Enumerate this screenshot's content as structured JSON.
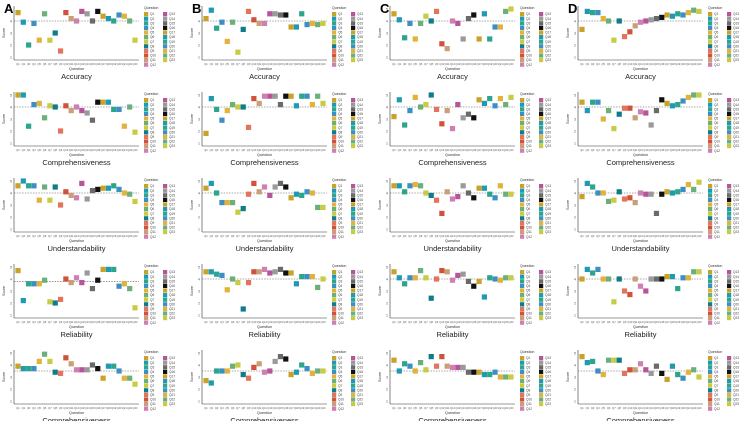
{
  "figure": {
    "columns": [
      "A",
      "B",
      "C",
      "D"
    ],
    "row_titles": [
      "Accuracy",
      "Comprehensiveness",
      "Understandability",
      "Reliability",
      "Comprehensiveness"
    ],
    "x_axis_label": "Question",
    "y_axis_label": "Score",
    "legend_title": "Question"
  },
  "colors": {
    "reference_line": "#555555",
    "axis": "#333333",
    "palette": [
      "#c9a227",
      "#1e9bb3",
      "#2ca58d",
      "#3c8fc4",
      "#e2b23b",
      "#6bb07a",
      "#c7cc44",
      "#0f7c8c",
      "#e3735b",
      "#d0523a",
      "#c89f78",
      "#cf7fb1",
      "#b7559a",
      "#9a9a9a",
      "#6a6a6a",
      "#111111"
    ]
  },
  "chart_data": [
    {
      "panel": "A",
      "metric": "Accuracy",
      "type": "scatter",
      "xlabel": "Question",
      "ylabel": "Score",
      "ref": 4.0,
      "ylim": [
        1,
        5
      ],
      "x": [
        "Q1",
        "Q2",
        "Q3",
        "Q4",
        "Q5",
        "Q6",
        "Q7",
        "Q8",
        "Q9",
        "Q10",
        "Q11",
        "Q12",
        "Q13",
        "Q14",
        "Q15",
        "Q16",
        "Q17",
        "Q18",
        "Q19",
        "Q20",
        "Q21",
        "Q22",
        "Q23"
      ],
      "values": [
        4.7,
        3.9,
        2.0,
        3.8,
        2.4,
        4.6,
        2.4,
        3.0,
        1.5,
        4.7,
        4.2,
        4.0,
        4.8,
        4.6,
        4.0,
        4.8,
        4.4,
        4.2,
        4.0,
        4.5,
        4.4,
        4.0,
        2.4
      ]
    },
    {
      "panel": "B",
      "metric": "Accuracy",
      "type": "scatter",
      "xlabel": "Question",
      "ylabel": "Score",
      "ref": 4.0,
      "ylim": [
        1,
        5
      ],
      "x": [
        "Q1",
        "Q2",
        "Q3",
        "Q4",
        "Q5",
        "Q6",
        "Q7",
        "Q8",
        "Q9",
        "Q10",
        "Q11",
        "Q12",
        "Q13",
        "Q14",
        "Q15",
        "Q16",
        "Q17",
        "Q18",
        "Q19",
        "Q20",
        "Q21",
        "Q22",
        "Q23"
      ],
      "values": [
        4.2,
        4.9,
        3.4,
        3.9,
        2.3,
        3.9,
        1.4,
        3.3,
        4.8,
        4.1,
        3.8,
        3.8,
        4.6,
        4.6,
        4.5,
        4.5,
        3.5,
        3.5,
        4.6,
        3.7,
        3.8,
        3.7,
        3.8
      ]
    },
    {
      "panel": "C",
      "metric": "Accuracy",
      "type": "scatter",
      "xlabel": "Question",
      "ylabel": "Score",
      "ref": 4.0,
      "ylim": [
        1,
        5
      ],
      "x": [
        "Q1",
        "Q2",
        "Q3",
        "Q4",
        "Q5",
        "Q6",
        "Q7",
        "Q8",
        "Q9",
        "Q10",
        "Q11",
        "Q12",
        "Q13",
        "Q14",
        "Q15",
        "Q16",
        "Q17",
        "Q18",
        "Q19",
        "Q20",
        "Q21",
        "Q22",
        "Q23"
      ],
      "values": [
        4.6,
        4.1,
        2.6,
        3.8,
        2.5,
        3.8,
        4.4,
        4.0,
        4.8,
        2.1,
        1.7,
        4.0,
        3.8,
        2.5,
        4.2,
        4.5,
        2.5,
        4.6,
        2.5,
        3.5,
        3.5,
        4.8,
        5.0
      ]
    },
    {
      "panel": "D",
      "metric": "Accuracy",
      "type": "scatter",
      "xlabel": "Question",
      "ylabel": "Score",
      "ref": 4.0,
      "ylim": [
        1,
        5
      ],
      "x": [
        "Q1",
        "Q2",
        "Q3",
        "Q4",
        "Q5",
        "Q6",
        "Q7",
        "Q8",
        "Q9",
        "Q10",
        "Q11",
        "Q12",
        "Q13",
        "Q14",
        "Q15",
        "Q16",
        "Q17",
        "Q18",
        "Q19",
        "Q20",
        "Q21",
        "Q22",
        "Q23"
      ],
      "values": [
        3.3,
        4.8,
        4.7,
        4.7,
        4.2,
        4.0,
        2.4,
        4.0,
        2.7,
        3.1,
        3.6,
        3.9,
        4.0,
        4.1,
        4.2,
        4.3,
        4.5,
        4.4,
        4.6,
        4.5,
        4.7,
        4.9,
        4.8
      ]
    },
    {
      "panel": "A",
      "metric": "Comprehensiveness",
      "type": "scatter",
      "xlabel": "Question",
      "ylabel": "Score",
      "ref": 4.0,
      "ylim": [
        1,
        5
      ],
      "x": [
        "Q1",
        "Q2",
        "Q3",
        "Q4",
        "Q5",
        "Q6",
        "Q7",
        "Q8",
        "Q9",
        "Q10",
        "Q11",
        "Q12",
        "Q13",
        "Q14",
        "Q15",
        "Q16",
        "Q17",
        "Q18",
        "Q19",
        "Q20",
        "Q21",
        "Q22",
        "Q23"
      ],
      "values": [
        5.0,
        5.0,
        2.4,
        4.2,
        4.3,
        3.1,
        4.1,
        4.0,
        2.0,
        4.1,
        3.7,
        4.0,
        3.7,
        3.5,
        2.9,
        4.4,
        4.4,
        4.4,
        3.8,
        3.8,
        2.4,
        4.0,
        1.9
      ]
    },
    {
      "panel": "B",
      "metric": "Comprehensiveness",
      "type": "scatter",
      "xlabel": "Question",
      "ylabel": "Score",
      "ref": 4.0,
      "ylim": [
        1,
        5
      ],
      "x": [
        "Q1",
        "Q2",
        "Q3",
        "Q4",
        "Q5",
        "Q6",
        "Q7",
        "Q8",
        "Q9",
        "Q10",
        "Q11",
        "Q12",
        "Q13",
        "Q14",
        "Q15",
        "Q16",
        "Q17",
        "Q18",
        "Q19",
        "Q20",
        "Q21",
        "Q22",
        "Q23"
      ],
      "values": [
        1.8,
        4.7,
        3.8,
        2.9,
        3.7,
        4.2,
        4.0,
        4.0,
        2.3,
        4.7,
        4.3,
        4.9,
        4.9,
        4.9,
        4.2,
        4.9,
        4.9,
        4.1,
        4.9,
        4.9,
        4.2,
        4.9,
        4.3
      ]
    },
    {
      "panel": "C",
      "metric": "Comprehensiveness",
      "type": "scatter",
      "xlabel": "Question",
      "ylabel": "Score",
      "ref": 4.0,
      "ylim": [
        1,
        5
      ],
      "x": [
        "Q1",
        "Q2",
        "Q3",
        "Q4",
        "Q5",
        "Q6",
        "Q7",
        "Q8",
        "Q9",
        "Q10",
        "Q11",
        "Q12",
        "Q13",
        "Q14",
        "Q15",
        "Q16",
        "Q17",
        "Q18",
        "Q19",
        "Q20",
        "Q21",
        "Q22",
        "Q23"
      ],
      "values": [
        3.2,
        4.6,
        2.5,
        3.7,
        4.8,
        4.0,
        4.2,
        5.0,
        3.8,
        2.6,
        3.7,
        2.2,
        4.2,
        3.1,
        3.4,
        3.1,
        4.6,
        4.3,
        4.7,
        4.1,
        4.7,
        4.2,
        4.8
      ]
    },
    {
      "panel": "D",
      "metric": "Comprehensiveness",
      "type": "scatter",
      "xlabel": "Question",
      "ylabel": "Score",
      "ref": 4.0,
      "ylim": [
        1,
        5
      ],
      "x": [
        "Q1",
        "Q2",
        "Q3",
        "Q4",
        "Q5",
        "Q6",
        "Q7",
        "Q8",
        "Q9",
        "Q10",
        "Q11",
        "Q12",
        "Q13",
        "Q14",
        "Q15",
        "Q16",
        "Q17",
        "Q18",
        "Q19",
        "Q20",
        "Q21",
        "Q22",
        "Q23"
      ],
      "values": [
        4.4,
        3.7,
        4.4,
        4.4,
        3.0,
        3.7,
        2.2,
        3.4,
        3.9,
        3.9,
        3.1,
        3.6,
        3.5,
        2.5,
        3.7,
        4.6,
        4.3,
        4.1,
        4.2,
        4.5,
        4.8,
        5.0,
        5.0
      ]
    },
    {
      "panel": "A",
      "metric": "Understandability",
      "type": "scatter",
      "xlabel": "Question",
      "ylabel": "Score",
      "ref": 4.0,
      "ylim": [
        1,
        5
      ],
      "x": [
        "Q1",
        "Q2",
        "Q3",
        "Q4",
        "Q5",
        "Q6",
        "Q7",
        "Q8",
        "Q9",
        "Q10",
        "Q11",
        "Q12",
        "Q13",
        "Q14",
        "Q15",
        "Q16",
        "Q17",
        "Q18",
        "Q19",
        "Q20",
        "Q21",
        "Q22",
        "Q23"
      ],
      "values": [
        4.6,
        5.0,
        4.6,
        4.6,
        3.4,
        4.5,
        3.4,
        4.5,
        3.0,
        4.1,
        3.8,
        3.6,
        4.8,
        3.5,
        4.2,
        4.3,
        4.4,
        4.4,
        4.6,
        4.3,
        4.0,
        3.9,
        3.3
      ]
    },
    {
      "panel": "B",
      "metric": "Understandability",
      "type": "scatter",
      "xlabel": "Question",
      "ylabel": "Score",
      "ref": 4.0,
      "ylim": [
        1,
        5
      ],
      "x": [
        "Q1",
        "Q2",
        "Q3",
        "Q4",
        "Q5",
        "Q6",
        "Q7",
        "Q8",
        "Q9",
        "Q10",
        "Q11",
        "Q12",
        "Q13",
        "Q14",
        "Q15",
        "Q16",
        "Q17",
        "Q18",
        "Q19",
        "Q20",
        "Q21",
        "Q22",
        "Q23"
      ],
      "values": [
        4.4,
        4.8,
        4.0,
        3.2,
        3.2,
        3.2,
        2.4,
        2.7,
        3.9,
        4.8,
        4.1,
        4.5,
        3.8,
        4.5,
        4.8,
        4.5,
        3.6,
        3.9,
        3.8,
        4.1,
        4.0,
        2.8,
        2.8
      ]
    },
    {
      "panel": "C",
      "metric": "Understandability",
      "type": "scatter",
      "xlabel": "Question",
      "ylabel": "Score",
      "ref": 4.0,
      "ylim": [
        1,
        5
      ],
      "x": [
        "Q1",
        "Q2",
        "Q3",
        "Q4",
        "Q5",
        "Q6",
        "Q7",
        "Q8",
        "Q9",
        "Q10",
        "Q11",
        "Q12",
        "Q13",
        "Q14",
        "Q15",
        "Q16",
        "Q17",
        "Q18",
        "Q19",
        "Q20",
        "Q21",
        "Q22",
        "Q23"
      ],
      "values": [
        4.6,
        4.6,
        4.1,
        4.6,
        4.7,
        4.6,
        4.0,
        3.8,
        3.4,
        2.3,
        4.1,
        3.5,
        3.7,
        4.6,
        4.0,
        3.6,
        4.4,
        4.4,
        3.9,
        3.6,
        4.6,
        3.9,
        3.9
      ]
    },
    {
      "panel": "D",
      "metric": "Understandability",
      "type": "scatter",
      "xlabel": "Question",
      "ylabel": "Score",
      "ref": 4.0,
      "ylim": [
        1,
        5
      ],
      "x": [
        "Q1",
        "Q2",
        "Q3",
        "Q4",
        "Q5",
        "Q6",
        "Q7",
        "Q8",
        "Q9",
        "Q10",
        "Q11",
        "Q12",
        "Q13",
        "Q14",
        "Q15",
        "Q16",
        "Q17",
        "Q18",
        "Q19",
        "Q20",
        "Q21",
        "Q22",
        "Q23"
      ],
      "values": [
        3.7,
        4.8,
        4.5,
        4.0,
        4.0,
        3.3,
        3.4,
        4.1,
        3.5,
        3.6,
        3.2,
        4.0,
        3.9,
        3.9,
        2.3,
        3.9,
        4.1,
        4.0,
        4.1,
        4.3,
        4.7,
        4.3,
        4.9
      ]
    },
    {
      "panel": "A",
      "metric": "Reliability",
      "type": "scatter",
      "xlabel": "Question",
      "ylabel": "Score",
      "ref": 3.8,
      "ylim": [
        1,
        5
      ],
      "x": [
        "Q1",
        "Q2",
        "Q3",
        "Q4",
        "Q5",
        "Q6",
        "Q7",
        "Q8",
        "Q9",
        "Q10",
        "Q11",
        "Q12",
        "Q13",
        "Q14",
        "Q15",
        "Q16",
        "Q17",
        "Q18",
        "Q19",
        "Q20",
        "Q21",
        "Q22",
        "Q23"
      ],
      "values": [
        4.7,
        2.2,
        3.6,
        3.6,
        3.6,
        3.9,
        2.1,
        2.0,
        2.3,
        4.0,
        3.7,
        4.1,
        3.7,
        4.5,
        3.2,
        3.9,
        4.8,
        4.8,
        4.8,
        3.4,
        3.6,
        3.2,
        1.6
      ]
    },
    {
      "panel": "B",
      "metric": "Reliability",
      "type": "scatter",
      "xlabel": "Question",
      "ylabel": "Score",
      "ref": 4.0,
      "ylim": [
        1,
        5
      ],
      "x": [
        "Q1",
        "Q2",
        "Q3",
        "Q4",
        "Q5",
        "Q6",
        "Q7",
        "Q8",
        "Q9",
        "Q10",
        "Q11",
        "Q12",
        "Q13",
        "Q14",
        "Q15",
        "Q16",
        "Q17",
        "Q18",
        "Q19",
        "Q20",
        "Q21",
        "Q22",
        "Q23"
      ],
      "values": [
        4.6,
        4.6,
        4.4,
        4.3,
        3.1,
        4.0,
        3.7,
        1.5,
        3.7,
        4.6,
        4.6,
        4.8,
        4.5,
        4.6,
        4.8,
        4.5,
        4.5,
        3.6,
        4.2,
        4.2,
        4.2,
        3.3,
        4.0
      ]
    },
    {
      "panel": "C",
      "metric": "Reliability",
      "type": "scatter",
      "xlabel": "Question",
      "ylabel": "Score",
      "ref": 4.0,
      "ylim": [
        1,
        5
      ],
      "x": [
        "Q1",
        "Q2",
        "Q3",
        "Q4",
        "Q5",
        "Q6",
        "Q7",
        "Q8",
        "Q9",
        "Q10",
        "Q11",
        "Q12",
        "Q13",
        "Q14",
        "Q15",
        "Q16",
        "Q17",
        "Q18",
        "Q19",
        "Q20",
        "Q21",
        "Q22",
        "Q23"
      ],
      "values": [
        4.6,
        4.1,
        3.6,
        4.1,
        4.1,
        4.7,
        4.1,
        2.4,
        4.0,
        4.7,
        4.6,
        3.9,
        4.3,
        4.4,
        3.8,
        3.4,
        3.8,
        2.5,
        4.1,
        4.0,
        3.9,
        4.1,
        4.1
      ]
    },
    {
      "panel": "D",
      "metric": "Reliability",
      "type": "scatter",
      "xlabel": "Question",
      "ylabel": "Score",
      "ref": 4.0,
      "ylim": [
        1,
        5
      ],
      "x": [
        "Q1",
        "Q2",
        "Q3",
        "Q4",
        "Q5",
        "Q6",
        "Q7",
        "Q8",
        "Q9",
        "Q10",
        "Q11",
        "Q12",
        "Q13",
        "Q14",
        "Q15",
        "Q16",
        "Q17",
        "Q18",
        "Q19",
        "Q20",
        "Q21",
        "Q22",
        "Q23"
      ],
      "values": [
        4.0,
        4.8,
        4.5,
        4.8,
        4.0,
        4.0,
        2.1,
        4.0,
        3.0,
        2.7,
        4.0,
        3.4,
        3.0,
        4.0,
        4.0,
        4.0,
        4.2,
        4.2,
        3.2,
        4.1,
        4.1,
        4.6,
        4.6
      ]
    },
    {
      "panel": "A",
      "metric": "Comprehensiveness",
      "type": "scatter",
      "xlabel": "Question",
      "ylabel": "Score",
      "ref": 3.5,
      "ylim": [
        1,
        5
      ],
      "x": [
        "Q1",
        "Q2",
        "Q3",
        "Q4",
        "Q5",
        "Q6",
        "Q7",
        "Q8",
        "Q9",
        "Q10",
        "Q11",
        "Q12",
        "Q13",
        "Q14",
        "Q15",
        "Q16",
        "Q17",
        "Q18",
        "Q19",
        "Q20",
        "Q21",
        "Q22",
        "Q23"
      ],
      "values": [
        3.9,
        3.7,
        3.7,
        3.7,
        4.3,
        4.9,
        4.3,
        3.4,
        3.3,
        4.6,
        4.1,
        3.6,
        3.6,
        3.6,
        4.0,
        3.7,
        2.9,
        3.9,
        3.9,
        3.5,
        2.9,
        2.9,
        2.4
      ]
    },
    {
      "panel": "B",
      "metric": "Comprehensiveness",
      "type": "scatter",
      "xlabel": "Question",
      "ylabel": "Score",
      "ref": 3.5,
      "ylim": [
        1,
        5
      ],
      "x": [
        "Q1",
        "Q2",
        "Q3",
        "Q4",
        "Q5",
        "Q6",
        "Q7",
        "Q8",
        "Q9",
        "Q10",
        "Q11",
        "Q12",
        "Q13",
        "Q14",
        "Q15",
        "Q16",
        "Q17",
        "Q18",
        "Q19",
        "Q20",
        "Q21",
        "Q22",
        "Q23"
      ],
      "values": [
        2.7,
        2.5,
        3.5,
        3.5,
        3.5,
        3.9,
        4.0,
        3.2,
        2.9,
        3.8,
        4.1,
        3.4,
        3.5,
        4.3,
        4.7,
        4.5,
        3.2,
        3.4,
        4.0,
        3.7,
        3.3,
        3.5,
        3.5
      ]
    },
    {
      "panel": "C",
      "metric": "Comprehensiveness",
      "type": "scatter",
      "xlabel": "Question",
      "ylabel": "Score",
      "ref": 3.5,
      "ylim": [
        1,
        5
      ],
      "x": [
        "Q1",
        "Q2",
        "Q3",
        "Q4",
        "Q5",
        "Q6",
        "Q7",
        "Q8",
        "Q9",
        "Q10",
        "Q11",
        "Q12",
        "Q13",
        "Q14",
        "Q15",
        "Q16",
        "Q17",
        "Q18",
        "Q19",
        "Q20",
        "Q21",
        "Q22",
        "Q23"
      ],
      "values": [
        4.4,
        3.5,
        4.1,
        3.9,
        3.5,
        4.2,
        3.6,
        4.7,
        3.9,
        4.7,
        3.9,
        3.8,
        3.8,
        3.8,
        3.4,
        3.4,
        3.4,
        3.2,
        3.2,
        3.4,
        3.0,
        3.0,
        3.0
      ]
    },
    {
      "panel": "D",
      "metric": "Comprehensiveness",
      "type": "scatter",
      "xlabel": "Question",
      "ylabel": "Score",
      "ref": 3.5,
      "ylim": [
        1,
        5
      ],
      "x": [
        "Q1",
        "Q2",
        "Q3",
        "Q4",
        "Q5",
        "Q6",
        "Q7",
        "Q8",
        "Q9",
        "Q10",
        "Q11",
        "Q12",
        "Q13",
        "Q14",
        "Q15",
        "Q16",
        "Q17",
        "Q18",
        "Q19",
        "Q20",
        "Q21",
        "Q22",
        "Q23"
      ],
      "values": [
        4.7,
        4.2,
        4.3,
        3.5,
        3.2,
        4.4,
        4.4,
        4.4,
        3.3,
        3.6,
        3.6,
        4.1,
        3.6,
        3.3,
        3.9,
        3.3,
        2.8,
        3.9,
        3.2,
        2.9,
        3.4,
        3.6,
        3.0
      ]
    }
  ]
}
